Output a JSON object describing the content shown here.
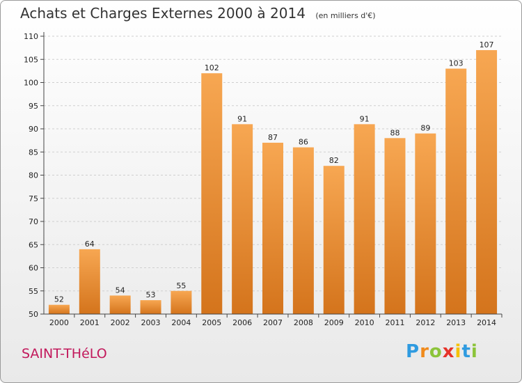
{
  "chart_data": {
    "type": "bar",
    "title": "Achats et Charges Externes 2000 à 2014",
    "subtitle": "(en milliers d'€)",
    "categories": [
      "2000",
      "2001",
      "2002",
      "2003",
      "2004",
      "2005",
      "2006",
      "2007",
      "2008",
      "2009",
      "2010",
      "2011",
      "2012",
      "2013",
      "2014"
    ],
    "values": [
      52,
      64,
      54,
      53,
      55,
      102,
      91,
      87,
      86,
      82,
      91,
      88,
      89,
      103,
      107
    ],
    "ylim": [
      50,
      110
    ],
    "yticks": [
      50,
      55,
      60,
      65,
      70,
      75,
      80,
      85,
      90,
      95,
      100,
      105,
      110
    ],
    "grid": true,
    "bar_color_light": "#f7a752",
    "bar_color_dark": "#d4741c"
  },
  "location": "SAINT-THéLO",
  "logo": {
    "letters": [
      "P",
      "r",
      "o",
      "x",
      "i",
      "t",
      "i"
    ],
    "colors": [
      "#2f9be0",
      "#f08a1c",
      "#8cc43a",
      "#e6332a",
      "#f6c100",
      "#2f9be0",
      "#8cc43a"
    ]
  }
}
